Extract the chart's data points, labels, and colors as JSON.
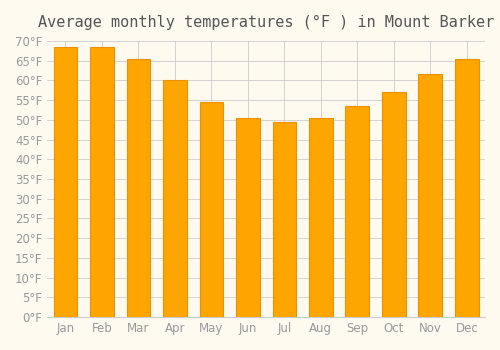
{
  "title": "Average monthly temperatures (°F ) in Mount Barker",
  "months": [
    "Jan",
    "Feb",
    "Mar",
    "Apr",
    "May",
    "Jun",
    "Jul",
    "Aug",
    "Sep",
    "Oct",
    "Nov",
    "Dec"
  ],
  "values": [
    68.5,
    68.5,
    65.5,
    60.0,
    54.5,
    50.5,
    49.5,
    50.5,
    53.5,
    57.0,
    61.5,
    65.5
  ],
  "bar_color": "#FFA500",
  "bar_edge_color": "#E8920A",
  "background_color": "#FFFAF0",
  "grid_color": "#CCCCCC",
  "ylim": [
    0,
    70
  ],
  "yticks": [
    0,
    5,
    10,
    15,
    20,
    25,
    30,
    35,
    40,
    45,
    50,
    55,
    60,
    65,
    70
  ],
  "title_fontsize": 11,
  "tick_fontsize": 8.5,
  "bar_width": 0.65
}
